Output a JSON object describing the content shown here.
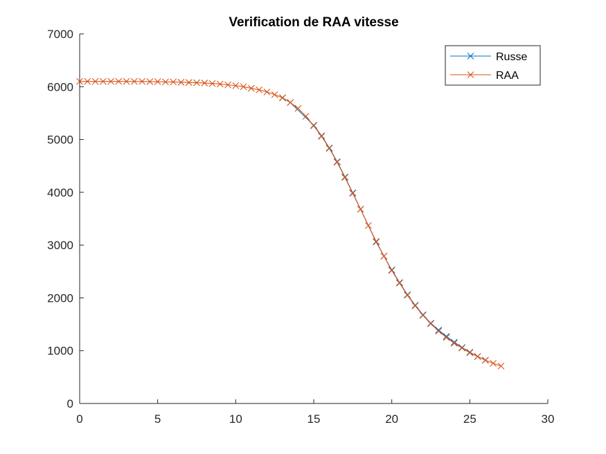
{
  "chart_data": {
    "type": "line",
    "title": "Verification de RAA vitesse",
    "xlabel": "",
    "ylabel": "",
    "xlim": [
      0,
      30
    ],
    "ylim": [
      0,
      7000
    ],
    "xticks": [
      0,
      5,
      10,
      15,
      20,
      25,
      30
    ],
    "yticks": [
      0,
      1000,
      2000,
      3000,
      4000,
      5000,
      6000,
      7000
    ],
    "xtick_labels": [
      "0",
      "5",
      "10",
      "15",
      "20",
      "25",
      "30"
    ],
    "ytick_labels": [
      "0",
      "1000",
      "2000",
      "3000",
      "4000",
      "5000",
      "6000",
      "7000"
    ],
    "grid": false,
    "legend_position": "top-right",
    "series": [
      {
        "name": "Russe",
        "color": "#0072BD",
        "marker": "x",
        "x": [
          13,
          13.5,
          15,
          15.5,
          16,
          16.5,
          17,
          17.5,
          18,
          19,
          19.5,
          20,
          20.5,
          21,
          21.5,
          22,
          22.5,
          23,
          23.5,
          24,
          24.5,
          25,
          25.5,
          26
        ],
        "y": [
          5790,
          5700,
          5270,
          5070,
          4840,
          4580,
          4290,
          3990,
          3680,
          3060,
          2790,
          2530,
          2290,
          2060,
          1860,
          1680,
          1520,
          1390,
          1270,
          1160,
          1060,
          970,
          890,
          820
        ]
      },
      {
        "name": "RAA",
        "color": "#D95319",
        "marker": "x",
        "x": [
          0,
          0.5,
          1,
          1.5,
          2,
          2.5,
          3,
          3.5,
          4,
          4.5,
          5,
          5.5,
          6,
          6.5,
          7,
          7.5,
          8,
          8.5,
          9,
          9.5,
          10,
          10.5,
          11,
          11.5,
          12,
          12.5,
          13,
          13.5,
          14,
          14.5,
          15,
          15.5,
          16,
          16.5,
          17,
          17.5,
          18,
          18.5,
          19,
          19.5,
          20,
          20.5,
          21,
          21.5,
          22,
          22.5,
          23,
          23.5,
          24,
          24.5,
          25,
          25.5,
          26,
          26.5,
          27
        ],
        "y": [
          6100,
          6100,
          6100,
          6100,
          6100,
          6100,
          6100,
          6100,
          6100,
          6095,
          6095,
          6090,
          6090,
          6085,
          6080,
          6075,
          6070,
          6060,
          6050,
          6035,
          6020,
          6000,
          5970,
          5940,
          5900,
          5850,
          5790,
          5700,
          5590,
          5440,
          5260,
          5060,
          4830,
          4570,
          4280,
          3980,
          3680,
          3370,
          3070,
          2790,
          2520,
          2280,
          2050,
          1850,
          1670,
          1510,
          1370,
          1250,
          1140,
          1050,
          960,
          890,
          820,
          760,
          710
        ]
      }
    ]
  }
}
